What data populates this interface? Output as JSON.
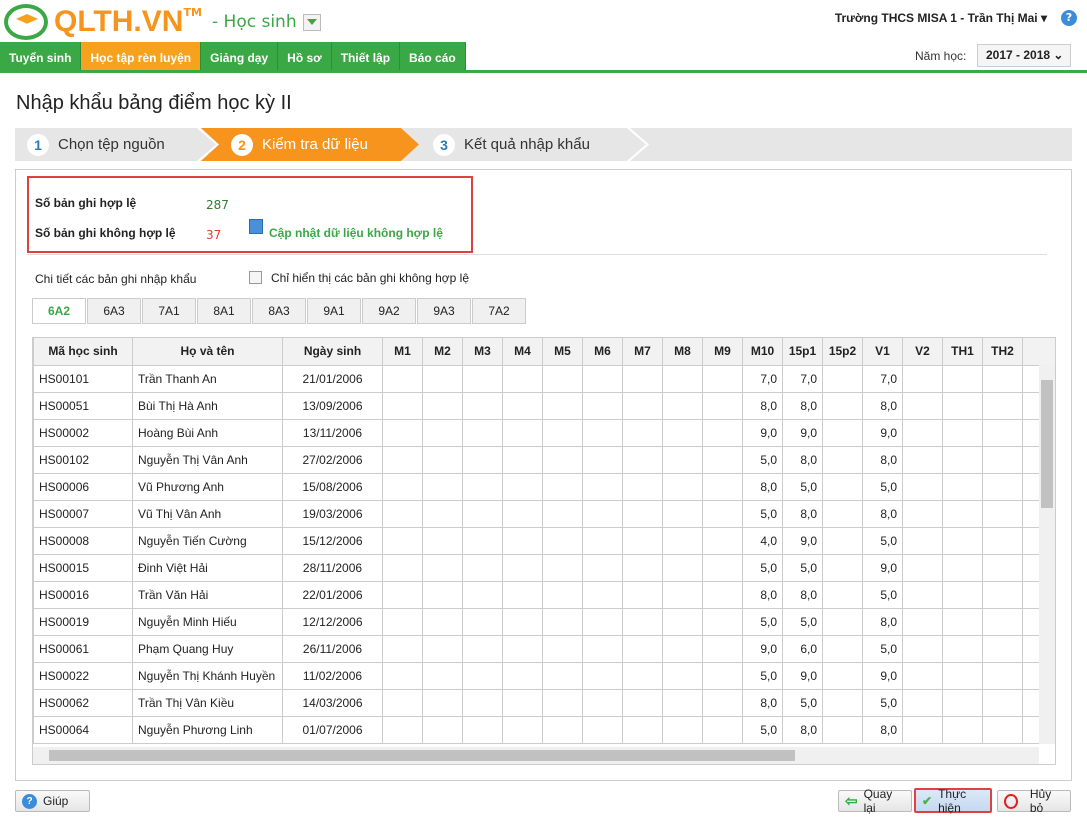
{
  "header": {
    "brand": "QLTH.VN",
    "tm": "TM",
    "role": "- Học sinh",
    "user": "Trường THCS MISA 1 - Trần Thị Mai ▾",
    "help": "?"
  },
  "nav": [
    {
      "label": "Tuyển sinh"
    },
    {
      "label": "Học tập rèn luyện",
      "active": true
    },
    {
      "label": "Giảng dạy"
    },
    {
      "label": "Hồ sơ"
    },
    {
      "label": "Thiết lập"
    },
    {
      "label": "Báo cáo"
    }
  ],
  "year": {
    "label": "Năm học:",
    "value": "2017 - 2018 ⌄"
  },
  "page_title": "Nhập khẩu bảng điểm học kỳ II",
  "steps": [
    {
      "n": "1",
      "label": "Chọn tệp nguồn"
    },
    {
      "n": "2",
      "label": "Kiểm tra dữ liệu",
      "active": true
    },
    {
      "n": "3",
      "label": "Kết quả nhập khẩu"
    }
  ],
  "summary": {
    "valid_label": "Số bản ghi hợp lệ",
    "valid": "287",
    "invalid_label": "Số bản ghi không hợp lệ",
    "invalid": "37",
    "update_link": "Cập nhật dữ liệu không hợp lệ"
  },
  "details_label": "Chi tiết các bản ghi nhập khẩu",
  "filter_label": "Chỉ hiển thị các bản ghi không hợp lệ",
  "filter_checked": false,
  "class_tabs": [
    "6A2",
    "6A3",
    "7A1",
    "8A1",
    "8A3",
    "9A1",
    "9A2",
    "9A3",
    "7A2"
  ],
  "active_tab": "6A2",
  "columns": [
    "Mã học sinh",
    "Họ và tên",
    "Ngày sinh",
    "M1",
    "M2",
    "M3",
    "M4",
    "M5",
    "M6",
    "M7",
    "M8",
    "M9",
    "M10",
    "15p1",
    "15p2",
    "V1",
    "V2",
    "TH1",
    "TH2"
  ],
  "rows": [
    {
      "id": "HS00101",
      "name": "Trần Thanh An",
      "dob": "21/01/2006",
      "M10": "7,0",
      "15p1": "7,0",
      "V1": "7,0"
    },
    {
      "id": "HS00051",
      "name": "Bùi Thị Hà Anh",
      "dob": "13/09/2006",
      "M10": "8,0",
      "15p1": "8,0",
      "V1": "8,0"
    },
    {
      "id": "HS00002",
      "name": "Hoàng Bùi Anh",
      "dob": "13/11/2006",
      "M10": "9,0",
      "15p1": "9,0",
      "V1": "9,0"
    },
    {
      "id": "HS00102",
      "name": "Nguyễn Thị Vân Anh",
      "dob": "27/02/2006",
      "M10": "5,0",
      "15p1": "8,0",
      "V1": "8,0"
    },
    {
      "id": "HS00006",
      "name": "Vũ Phương Anh",
      "dob": "15/08/2006",
      "M10": "8,0",
      "15p1": "5,0",
      "V1": "5,0"
    },
    {
      "id": "HS00007",
      "name": "Vũ Thị Vân Anh",
      "dob": "19/03/2006",
      "M10": "5,0",
      "15p1": "8,0",
      "V1": "8,0"
    },
    {
      "id": "HS00008",
      "name": "Nguyễn Tiến Cường",
      "dob": "15/12/2006",
      "M10": "4,0",
      "15p1": "9,0",
      "V1": "5,0"
    },
    {
      "id": "HS00015",
      "name": "Đinh Việt Hải",
      "dob": "28/11/2006",
      "M10": "5,0",
      "15p1": "5,0",
      "V1": "9,0"
    },
    {
      "id": "HS00016",
      "name": "Trần Văn Hải",
      "dob": "22/01/2006",
      "M10": "8,0",
      "15p1": "8,0",
      "V1": "5,0"
    },
    {
      "id": "HS00019",
      "name": "Nguyễn Minh Hiếu",
      "dob": "12/12/2006",
      "M10": "5,0",
      "15p1": "5,0",
      "V1": "8,0"
    },
    {
      "id": "HS00061",
      "name": "Phạm Quang Huy",
      "dob": "26/11/2006",
      "M10": "9,0",
      "15p1": "6,0",
      "V1": "5,0"
    },
    {
      "id": "HS00022",
      "name": "Nguyễn Thị Khánh Huyền",
      "dob": "11/02/2006",
      "M10": "5,0",
      "15p1": "9,0",
      "V1": "9,0"
    },
    {
      "id": "HS00062",
      "name": "Trần Thị Vân Kiều",
      "dob": "14/03/2006",
      "M10": "8,0",
      "15p1": "5,0",
      "V1": "5,0"
    },
    {
      "id": "HS00064",
      "name": "Nguyễn Phương Linh",
      "dob": "01/07/2006",
      "M10": "5,0",
      "15p1": "8,0",
      "V1": "8,0"
    }
  ],
  "buttons": {
    "help": "Giúp",
    "back": "Quay lại",
    "execute": "Thực hiện",
    "cancel": "Hủy bỏ"
  },
  "colors": {
    "green": "#3aa845",
    "orange": "#f7941d",
    "highlight": "#e0403f",
    "invalid": "#e53935"
  }
}
